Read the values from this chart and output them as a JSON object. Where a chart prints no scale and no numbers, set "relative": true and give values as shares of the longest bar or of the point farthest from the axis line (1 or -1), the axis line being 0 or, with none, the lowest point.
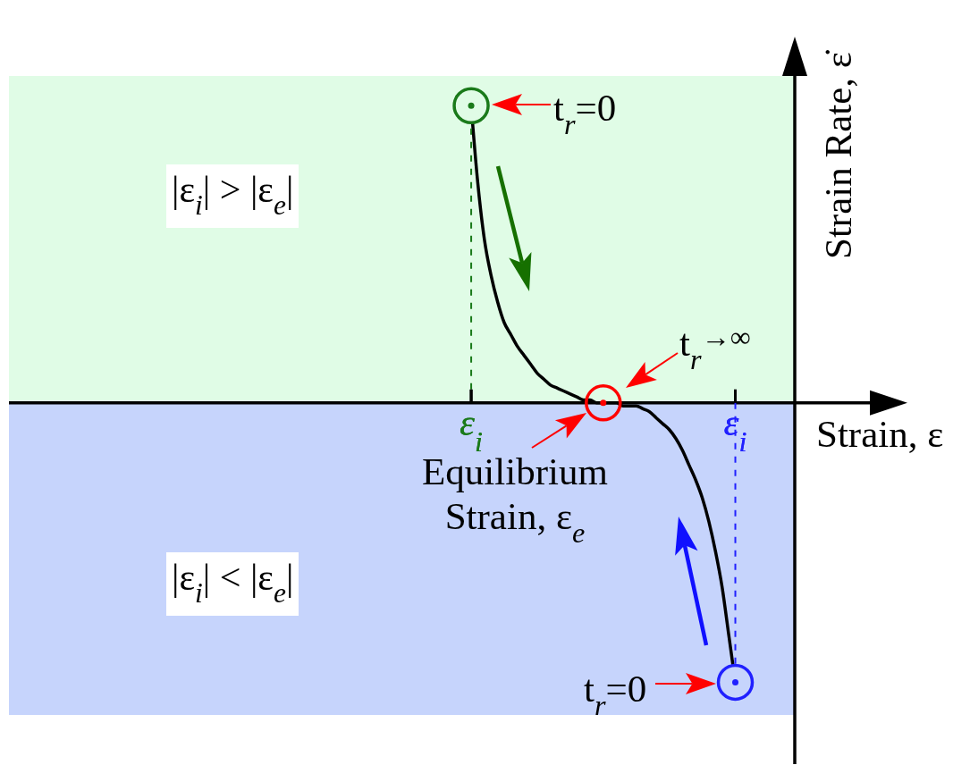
{
  "chart_data": {
    "type": "line",
    "relative": true,
    "xlabel": "Strain, ε",
    "ylabel": "Strain Rate, ε̇",
    "categories": [
      null,
      null,
      null,
      null,
      null,
      null,
      null,
      null,
      null,
      null,
      null,
      null,
      null,
      null,
      null,
      null,
      null,
      null,
      null,
      null,
      null,
      null,
      null,
      null,
      null,
      null,
      null,
      null,
      null,
      null,
      null,
      null,
      null,
      null,
      null,
      null,
      null,
      null,
      null,
      null,
      null,
      null,
      null,
      null,
      null,
      null,
      null,
      null,
      null,
      null,
      null,
      null,
      null,
      null,
      null,
      null,
      null,
      null,
      null,
      null,
      null,
      null,
      null,
      null,
      null,
      null,
      null,
      null,
      null,
      null,
      "ε$_{i}$",
      null,
      null,
      null,
      null,
      null,
      null,
      null,
      null,
      null,
      null,
      null,
      null,
      null,
      null,
      null,
      null,
      null,
      null,
      null,
      null,
      null,
      null,
      null,
      null,
      null,
      null,
      null,
      null,
      null,
      null,
      null,
      null,
      null,
      null,
      null,
      null,
      null,
      null,
      null,
      "ε$_{i}$",
      null,
      null,
      null,
      null,
      null,
      null,
      null,
      null,
      null
    ],
    "series": [
      {
        "color": "#000000",
        "values": [
          null,
          null,
          null,
          null,
          null,
          null,
          null,
          null,
          null,
          null,
          null,
          null,
          null,
          null,
          null,
          null,
          null,
          null,
          null,
          null,
          null,
          null,
          null,
          null,
          null,
          null,
          null,
          null,
          null,
          null,
          null,
          null,
          null,
          null,
          null,
          null,
          null,
          null,
          null,
          null,
          null,
          null,
          null,
          null,
          null,
          null,
          null,
          null,
          null,
          null,
          null,
          null,
          null,
          null,
          null,
          null,
          null,
          null,
          null,
          null,
          null,
          null,
          null,
          null,
          null,
          null,
          null,
          null,
          null,
          null,
          1,
          0.74,
          0.55,
          0.43,
          0.34,
          0.27,
          0.23,
          0.19,
          0.16,
          0.13,
          0.1,
          0.08,
          0.06,
          0.05,
          0.04,
          0.03,
          0.02,
          0.01,
          0.01,
          0,
          0,
          0,
          0,
          -0.01,
          -0.01,
          -0.01,
          -0.02,
          -0.03,
          -0.05,
          -0.07,
          -0.09,
          -0.12,
          -0.16,
          -0.21,
          -0.26,
          -0.32,
          -0.4,
          -0.5,
          -0.62,
          -0.78,
          -0.94,
          null,
          null,
          null,
          null,
          null,
          null,
          null,
          null,
          null
        ]
      },
      {
        "type": "lollipop",
        "color": "#1a7a1a",
        "marker": "circle",
        "line_style": "dashed",
        "values": [
          null,
          null,
          null,
          null,
          null,
          null,
          null,
          null,
          null,
          null,
          null,
          null,
          null,
          null,
          null,
          null,
          null,
          null,
          null,
          null,
          null,
          null,
          null,
          null,
          null,
          null,
          null,
          null,
          null,
          null,
          null,
          null,
          null,
          null,
          null,
          null,
          null,
          null,
          null,
          null,
          null,
          null,
          null,
          null,
          null,
          null,
          null,
          null,
          null,
          null,
          null,
          null,
          null,
          null,
          null,
          null,
          null,
          null,
          null,
          null,
          null,
          null,
          null,
          null,
          null,
          null,
          null,
          null,
          null,
          null,
          1,
          null,
          null,
          null,
          null,
          null,
          null,
          null,
          null,
          null,
          null,
          null,
          null,
          null,
          null,
          null,
          null,
          null,
          null,
          null,
          null,
          null,
          null,
          null,
          null,
          null,
          null,
          null,
          null,
          null,
          null,
          null,
          null,
          null,
          null,
          null,
          null,
          null,
          null,
          null,
          null,
          null,
          null,
          null,
          null,
          null,
          null,
          null,
          null,
          null
        ]
      },
      {
        "type": "lollipop",
        "color": "#ff0000",
        "marker": "circle",
        "line_style": "dashed",
        "values": [
          null,
          null,
          null,
          null,
          null,
          null,
          null,
          null,
          null,
          null,
          null,
          null,
          null,
          null,
          null,
          null,
          null,
          null,
          null,
          null,
          null,
          null,
          null,
          null,
          null,
          null,
          null,
          null,
          null,
          null,
          null,
          null,
          null,
          null,
          null,
          null,
          null,
          null,
          null,
          null,
          null,
          null,
          null,
          null,
          null,
          null,
          null,
          null,
          null,
          null,
          null,
          null,
          null,
          null,
          null,
          null,
          null,
          null,
          null,
          null,
          null,
          null,
          null,
          null,
          null,
          null,
          null,
          null,
          null,
          null,
          null,
          null,
          null,
          null,
          null,
          null,
          null,
          null,
          null,
          null,
          null,
          null,
          null,
          null,
          null,
          null,
          null,
          null,
          null,
          null,
          0,
          null,
          null,
          null,
          null,
          null,
          null,
          null,
          null,
          null,
          null,
          null,
          null,
          null,
          null,
          null,
          null,
          null,
          null,
          null,
          null,
          null,
          null,
          null,
          null,
          null,
          null,
          null,
          null,
          null
        ]
      },
      {
        "type": "lollipop",
        "color": "#2020ff",
        "marker": "circle",
        "line_style": "dashed",
        "values": [
          null,
          null,
          null,
          null,
          null,
          null,
          null,
          null,
          null,
          null,
          null,
          null,
          null,
          null,
          null,
          null,
          null,
          null,
          null,
          null,
          null,
          null,
          null,
          null,
          null,
          null,
          null,
          null,
          null,
          null,
          null,
          null,
          null,
          null,
          null,
          null,
          null,
          null,
          null,
          null,
          null,
          null,
          null,
          null,
          null,
          null,
          null,
          null,
          null,
          null,
          null,
          null,
          null,
          null,
          null,
          null,
          null,
          null,
          null,
          null,
          null,
          null,
          null,
          null,
          null,
          null,
          null,
          null,
          null,
          null,
          null,
          null,
          null,
          null,
          null,
          null,
          null,
          null,
          null,
          null,
          null,
          null,
          null,
          null,
          null,
          null,
          null,
          null,
          null,
          null,
          null,
          null,
          null,
          null,
          null,
          null,
          null,
          null,
          null,
          null,
          null,
          null,
          null,
          null,
          null,
          null,
          null,
          null,
          null,
          null,
          -0.94,
          null,
          null,
          null,
          null,
          null,
          null,
          null,
          null,
          null
        ]
      }
    ],
    "bands": [
      {
        "axis": "y",
        "from": 0,
        "to": 1.1,
        "label": "|ε$_{i}$| > |ε$_{e}$|",
        "color": "#e0fce6"
      },
      {
        "axis": "y",
        "from": -1.05,
        "to": 0,
        "label": "|ε$_{i}$| < |ε$_{e}$|",
        "color": "#c6d4fc"
      }
    ],
    "annotations": [
      "t$_{r}$=0",
      "t$_{r}$$^{→∞}$",
      "Equilibrium Strain, ε$_{e}$",
      "t$_{r}$=0"
    ]
  }
}
